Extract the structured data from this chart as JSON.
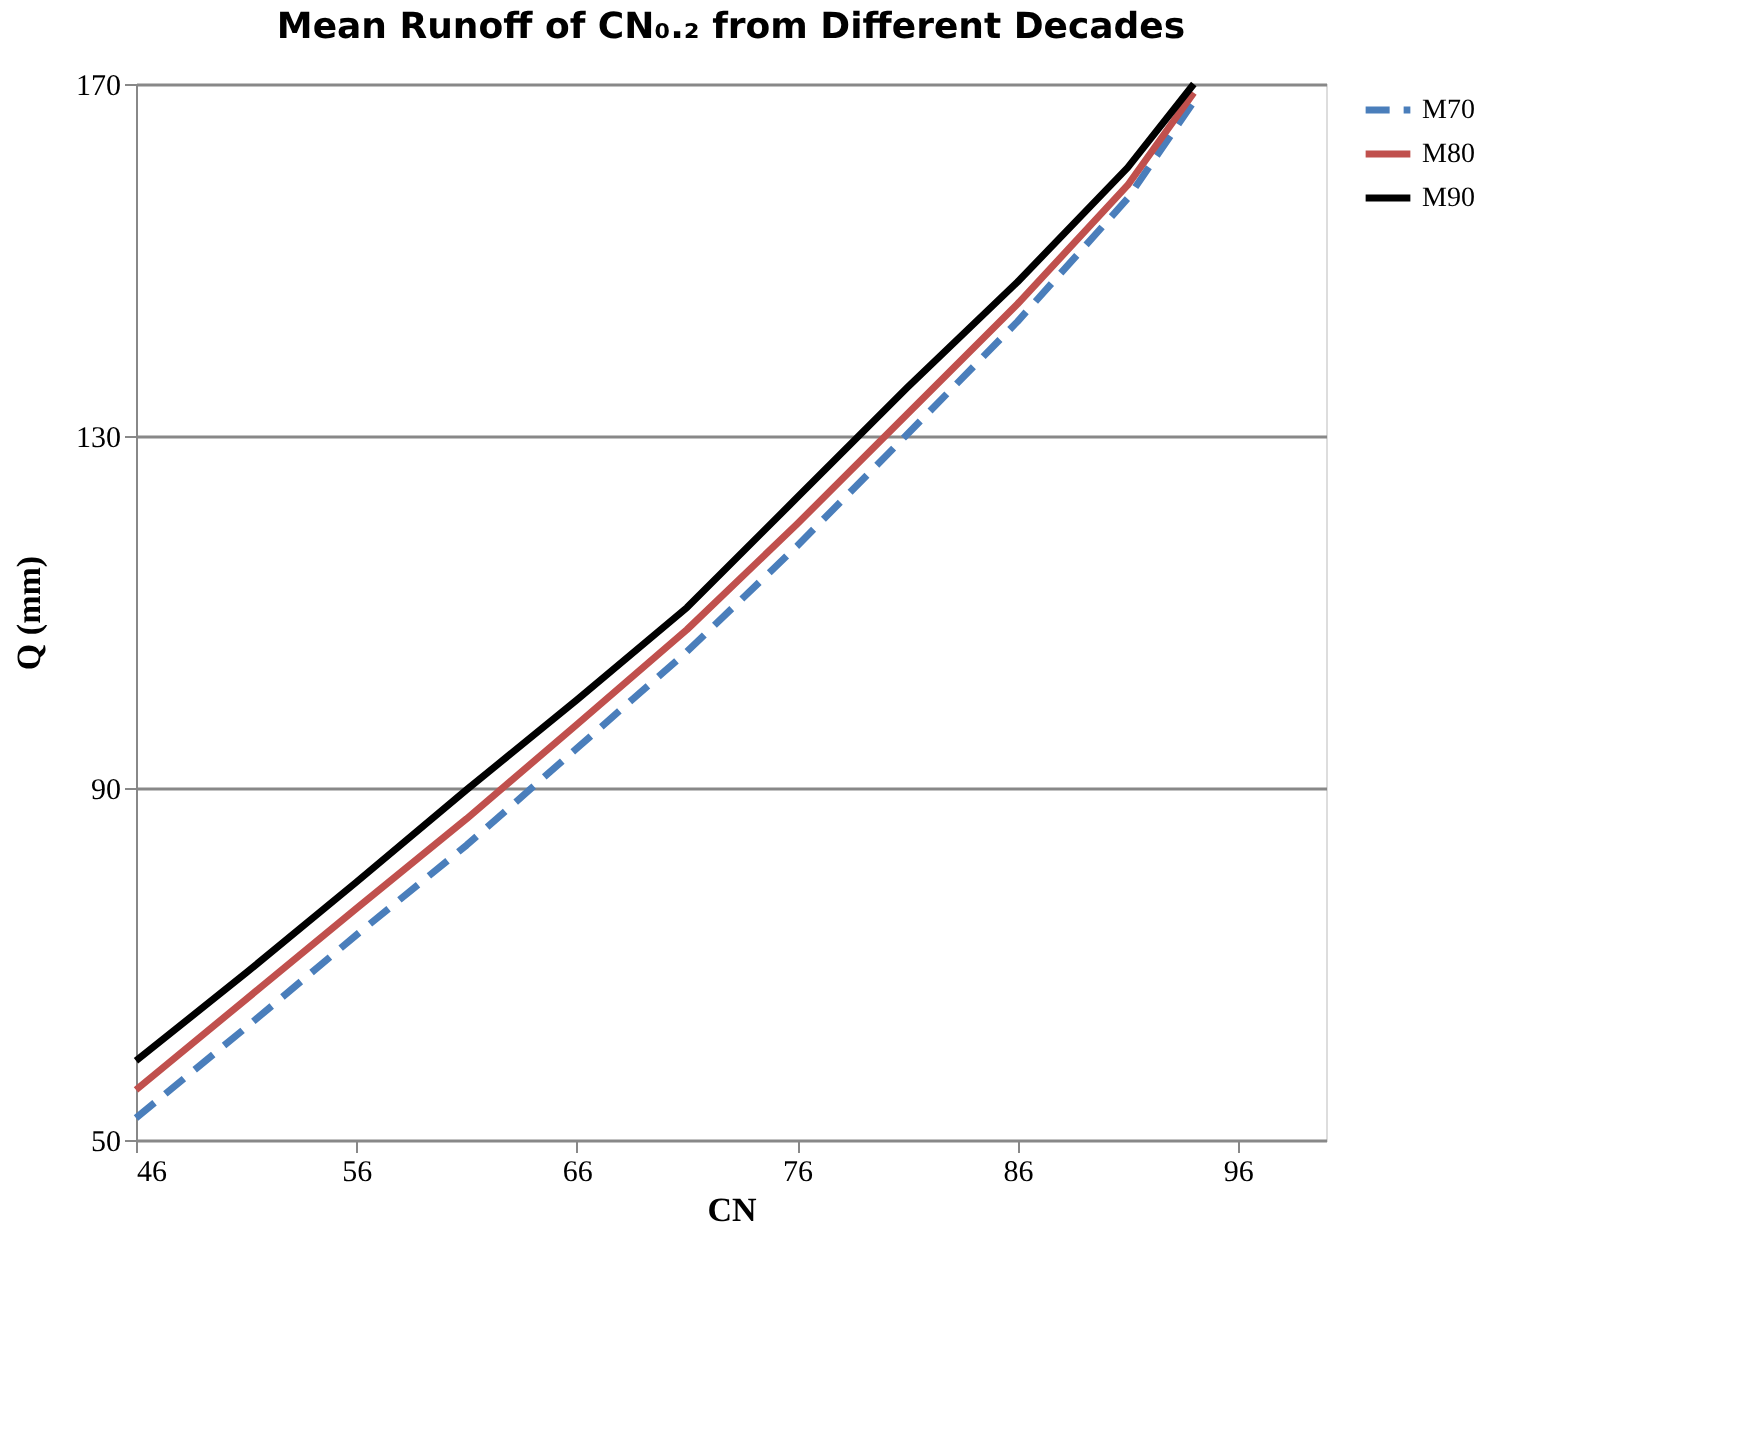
{
  "chart_data": {
    "type": "line",
    "title": "Mean Runoff of CN₀.₂ from Different Decades",
    "xlabel": "CN",
    "ylabel": "Q (mm)",
    "x": [
      46,
      51,
      56,
      61,
      66,
      71,
      76,
      81,
      86,
      91,
      94
    ],
    "series": [
      {
        "name": "M70",
        "color": "#4a7ebb",
        "line_style": "dashed",
        "values": [
          52.5,
          62.8,
          73.3,
          83.5,
          94.5,
          105.5,
          117.5,
          130.2,
          143,
          157,
          168
        ]
      },
      {
        "name": "M80",
        "color": "#c0504d",
        "line_style": "solid",
        "values": [
          55.7,
          66,
          76.3,
          86.5,
          97.2,
          108,
          120,
          132.5,
          145,
          158.5,
          169
        ]
      },
      {
        "name": "M90",
        "color": "#000000",
        "line_style": "solid",
        "values": [
          59,
          69,
          79.3,
          89.8,
          100,
          110.5,
          123,
          135.5,
          147.5,
          160.5,
          170
        ]
      }
    ],
    "xlim": [
      46,
      100
    ],
    "xticks": [
      46,
      56,
      66,
      76,
      86,
      96
    ],
    "ylim": [
      50,
      170
    ],
    "yticks": [
      50,
      90,
      130,
      170
    ],
    "grid": "y",
    "legend": "right",
    "marker": "none"
  }
}
